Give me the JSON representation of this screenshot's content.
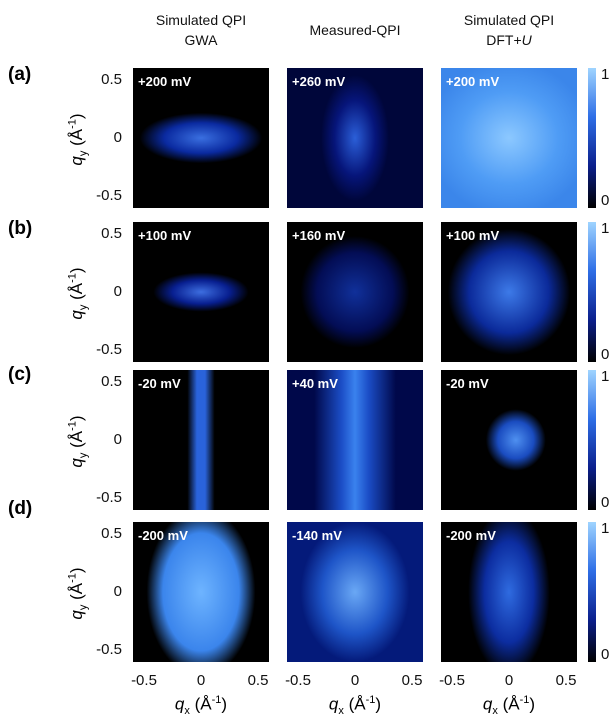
{
  "columns": [
    {
      "title": "Simulated QPI",
      "subtitle": "GWA"
    },
    {
      "title": "Measured-QPI"
    },
    {
      "title": "Simulated QPI",
      "subtitle": "DFT+",
      "subtitle_italic": "U"
    }
  ],
  "rows": [
    {
      "label": "(a)",
      "energies": [
        "+200 mV",
        "+260 mV",
        "+200 mV"
      ]
    },
    {
      "label": "(b)",
      "energies": [
        "+100 mV",
        "+160 mV",
        "+100 mV"
      ]
    },
    {
      "label": "(c)",
      "energies": [
        "-20 mV",
        "+40 mV",
        "-20 mV"
      ]
    },
    {
      "label": "(d)",
      "energies": [
        "-200 mV",
        "-140 mV",
        "-200 mV"
      ]
    }
  ],
  "y_axis": {
    "symbol": "q",
    "sub": "y",
    "unit": " (Å",
    "exp": "-1",
    "close": ")",
    "ticks": [
      "0.5",
      "0",
      "-0.5"
    ]
  },
  "x_axis": {
    "symbol": "q",
    "sub": "x",
    "unit": " (Å",
    "exp": "-1",
    "close": ")",
    "ticks": [
      "-0.5",
      "0",
      "0.5"
    ]
  },
  "colorbar": {
    "ticks": [
      "1",
      "0"
    ]
  }
}
